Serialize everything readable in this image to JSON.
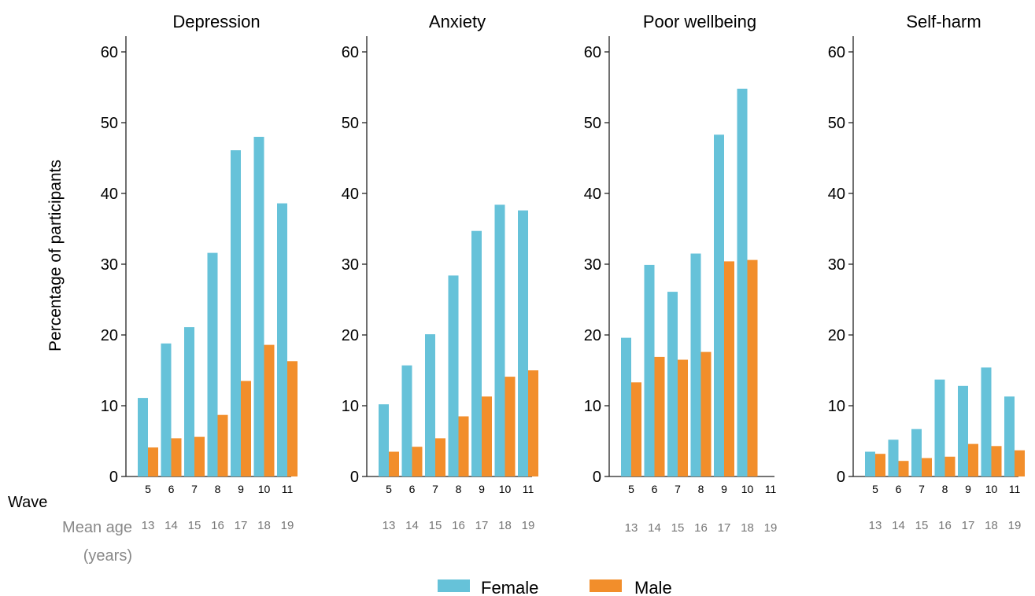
{
  "ylabel": "Percentage of participants",
  "row_labels": {
    "wave": "Wave",
    "mean_age_line1": "Mean age",
    "mean_age_line2": "(years)"
  },
  "legend": [
    {
      "name": "Female",
      "color": "#66C2D9"
    },
    {
      "name": "Male",
      "color": "#F28E2B"
    }
  ],
  "chart_data": [
    {
      "type": "bar",
      "title": "Depression",
      "categories": [
        "5",
        "6",
        "7",
        "8",
        "9",
        "10",
        "11"
      ],
      "mean_age": [
        "13",
        "14",
        "15",
        "16",
        "17",
        "18",
        "19"
      ],
      "ylim": [
        0,
        60
      ],
      "yticks": [
        0,
        10,
        20,
        30,
        40,
        50,
        60
      ],
      "series": [
        {
          "name": "Female",
          "color": "#66C2D9",
          "values": [
            11.1,
            18.8,
            21.1,
            31.6,
            46.1,
            48.0,
            38.6
          ]
        },
        {
          "name": "Male",
          "color": "#F28E2B",
          "values": [
            4.1,
            5.4,
            5.6,
            8.7,
            13.5,
            18.6,
            16.3
          ]
        }
      ]
    },
    {
      "type": "bar",
      "title": "Anxiety",
      "categories": [
        "5",
        "6",
        "7",
        "8",
        "9",
        "10",
        "11"
      ],
      "mean_age": [
        "13",
        "14",
        "15",
        "16",
        "17",
        "18",
        "19"
      ],
      "ylim": [
        0,
        60
      ],
      "yticks": [
        0,
        10,
        20,
        30,
        40,
        50,
        60
      ],
      "series": [
        {
          "name": "Female",
          "color": "#66C2D9",
          "values": [
            10.2,
            15.7,
            20.1,
            28.4,
            34.7,
            38.4,
            37.6
          ]
        },
        {
          "name": "Male",
          "color": "#F28E2B",
          "values": [
            3.5,
            4.2,
            5.4,
            8.5,
            11.3,
            14.1,
            15.0
          ]
        }
      ]
    },
    {
      "type": "bar",
      "title": "Poor wellbeing",
      "categories": [
        "5",
        "6",
        "7",
        "8",
        "9",
        "10",
        "11"
      ],
      "mean_age": [
        "13",
        "14",
        "15",
        "16",
        "17",
        "18",
        "19"
      ],
      "ylim": [
        0,
        60
      ],
      "yticks": [
        0,
        10,
        20,
        30,
        40,
        50,
        60
      ],
      "series": [
        {
          "name": "Female",
          "color": "#66C2D9",
          "values": [
            19.6,
            29.9,
            26.1,
            31.5,
            48.3,
            54.8,
            null
          ]
        },
        {
          "name": "Male",
          "color": "#F28E2B",
          "values": [
            13.3,
            16.9,
            16.5,
            17.6,
            30.4,
            30.6,
            null
          ]
        }
      ]
    },
    {
      "type": "bar",
      "title": "Self-harm",
      "categories": [
        "5",
        "6",
        "7",
        "8",
        "9",
        "10",
        "11"
      ],
      "mean_age": [
        "13",
        "14",
        "15",
        "16",
        "17",
        "18",
        "19"
      ],
      "ylim": [
        0,
        60
      ],
      "yticks": [
        0,
        10,
        20,
        30,
        40,
        50,
        60
      ],
      "series": [
        {
          "name": "Female",
          "color": "#66C2D9",
          "values": [
            3.5,
            5.2,
            6.7,
            13.7,
            12.8,
            15.4,
            11.3
          ]
        },
        {
          "name": "Male",
          "color": "#F28E2B",
          "values": [
            3.2,
            2.2,
            2.6,
            2.8,
            4.6,
            4.3,
            3.7
          ]
        }
      ]
    }
  ]
}
